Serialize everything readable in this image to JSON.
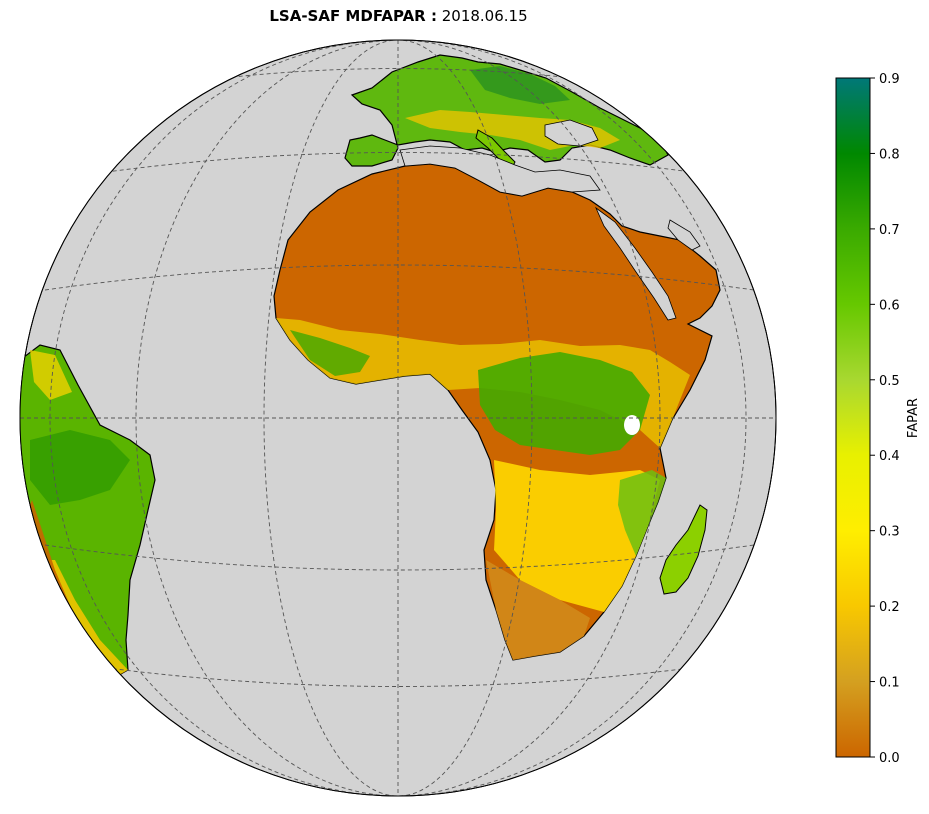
{
  "title": {
    "product": "LSA-SAF MDFAPAR :",
    "date": "2018.06.15"
  },
  "map": {
    "projection": "orthographic",
    "ocean_color": "#d3d3d3",
    "coastline_color": "#000000",
    "gridline_style": "dashed",
    "gridline_color": "#555555"
  },
  "colorbar": {
    "label": "FAPAR",
    "ticks": [
      "0.0",
      "0.1",
      "0.2",
      "0.3",
      "0.4",
      "0.5",
      "0.6",
      "0.7",
      "0.8",
      "0.9"
    ],
    "range": [
      0.0,
      0.9
    ],
    "colors": [
      "#cc6600",
      "#d4a020",
      "#f8c800",
      "#ffee00",
      "#e8f000",
      "#a8d830",
      "#66c800",
      "#3aaa00",
      "#008800",
      "#007878"
    ]
  }
}
